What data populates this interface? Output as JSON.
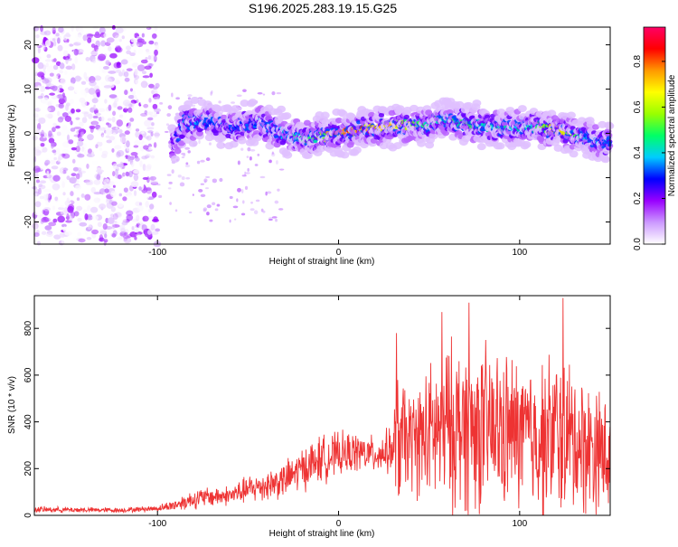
{
  "title": "S196.2025.283.19.15.G25",
  "chart_data": [
    {
      "type": "heatmap",
      "name": "spectrogram",
      "xlabel": "Height of straight line (km)",
      "ylabel": "Frequency (Hz)",
      "xlim": [
        -168,
        150
      ],
      "ylim": [
        -25,
        24
      ],
      "xticks": [
        -100,
        0,
        100
      ],
      "xtick_labels": [
        "-100",
        "0",
        "100"
      ],
      "yticks": [
        20,
        10,
        0,
        -10,
        -20
      ],
      "ytick_labels": [
        "20",
        "10",
        "0",
        "-10",
        "-20"
      ],
      "colorbar": {
        "label": "Normalized spectral amplitude",
        "range": [
          0,
          0.95
        ],
        "ticks": [
          0.0,
          0.2,
          0.4,
          0.6,
          0.8
        ],
        "tick_labels": [
          "0.0",
          "0.2",
          "0.4",
          "0.6",
          "0.8"
        ],
        "colors": [
          "#ffffff",
          "#cc99ff",
          "#9900ff",
          "#0000ff",
          "#00ccff",
          "#00ff66",
          "#99ff00",
          "#ffff00",
          "#ff9900",
          "#ff0000",
          "#ff0066"
        ]
      },
      "ridge": {
        "x": [
          -92,
          -85,
          -75,
          -60,
          -45,
          -35,
          -25,
          -15,
          0,
          15,
          30,
          45,
          60,
          75,
          90,
          105,
          120,
          135,
          150
        ],
        "y": [
          -3,
          2.5,
          3,
          1,
          2.5,
          1,
          -1,
          -1,
          0,
          1,
          1.5,
          2,
          3,
          2,
          1,
          1.5,
          1,
          -1,
          -2
        ],
        "peak_amplitude": [
          0.15,
          0.4,
          0.35,
          0.3,
          0.35,
          0.35,
          0.45,
          0.5,
          0.85,
          0.8,
          0.75,
          0.55,
          0.5,
          0.5,
          0.45,
          0.45,
          0.8,
          0.4,
          0.35
        ]
      },
      "noise_region_x": [
        -168,
        -100
      ]
    },
    {
      "type": "line",
      "name": "snr",
      "xlabel": "Height of straight line (km)",
      "ylabel": "SNR (10 * v/v)",
      "xlim": [
        -168,
        150
      ],
      "ylim": [
        0,
        940
      ],
      "xticks": [
        -100,
        0,
        100
      ],
      "xtick_labels": [
        "-100",
        "0",
        "100"
      ],
      "yticks": [
        0,
        200,
        400,
        600,
        800
      ],
      "ytick_labels": [
        "0",
        "200",
        "400",
        "600",
        "800"
      ],
      "color": "#ee3333",
      "envelope": {
        "x": [
          -168,
          -120,
          -100,
          -90,
          -80,
          -70,
          -60,
          -50,
          -40,
          -30,
          -20,
          -10,
          0,
          10,
          20,
          30,
          32,
          40,
          50,
          60,
          70,
          80,
          90,
          100,
          110,
          120,
          130,
          140,
          150
        ],
        "mean": [
          25,
          22,
          30,
          45,
          70,
          80,
          85,
          110,
          130,
          150,
          200,
          240,
          260,
          270,
          260,
          280,
          320,
          320,
          340,
          380,
          380,
          370,
          360,
          350,
          330,
          350,
          320,
          290,
          260
        ],
        "spread": [
          15,
          12,
          15,
          30,
          50,
          50,
          50,
          70,
          80,
          90,
          110,
          120,
          110,
          100,
          90,
          120,
          350,
          250,
          350,
          420,
          430,
          420,
          400,
          380,
          380,
          420,
          380,
          330,
          300
        ]
      },
      "notable_peaks": [
        {
          "x": 32,
          "y": 780
        },
        {
          "x": 57,
          "y": 870
        },
        {
          "x": 72,
          "y": 910
        },
        {
          "x": 124,
          "y": 930
        }
      ]
    }
  ]
}
